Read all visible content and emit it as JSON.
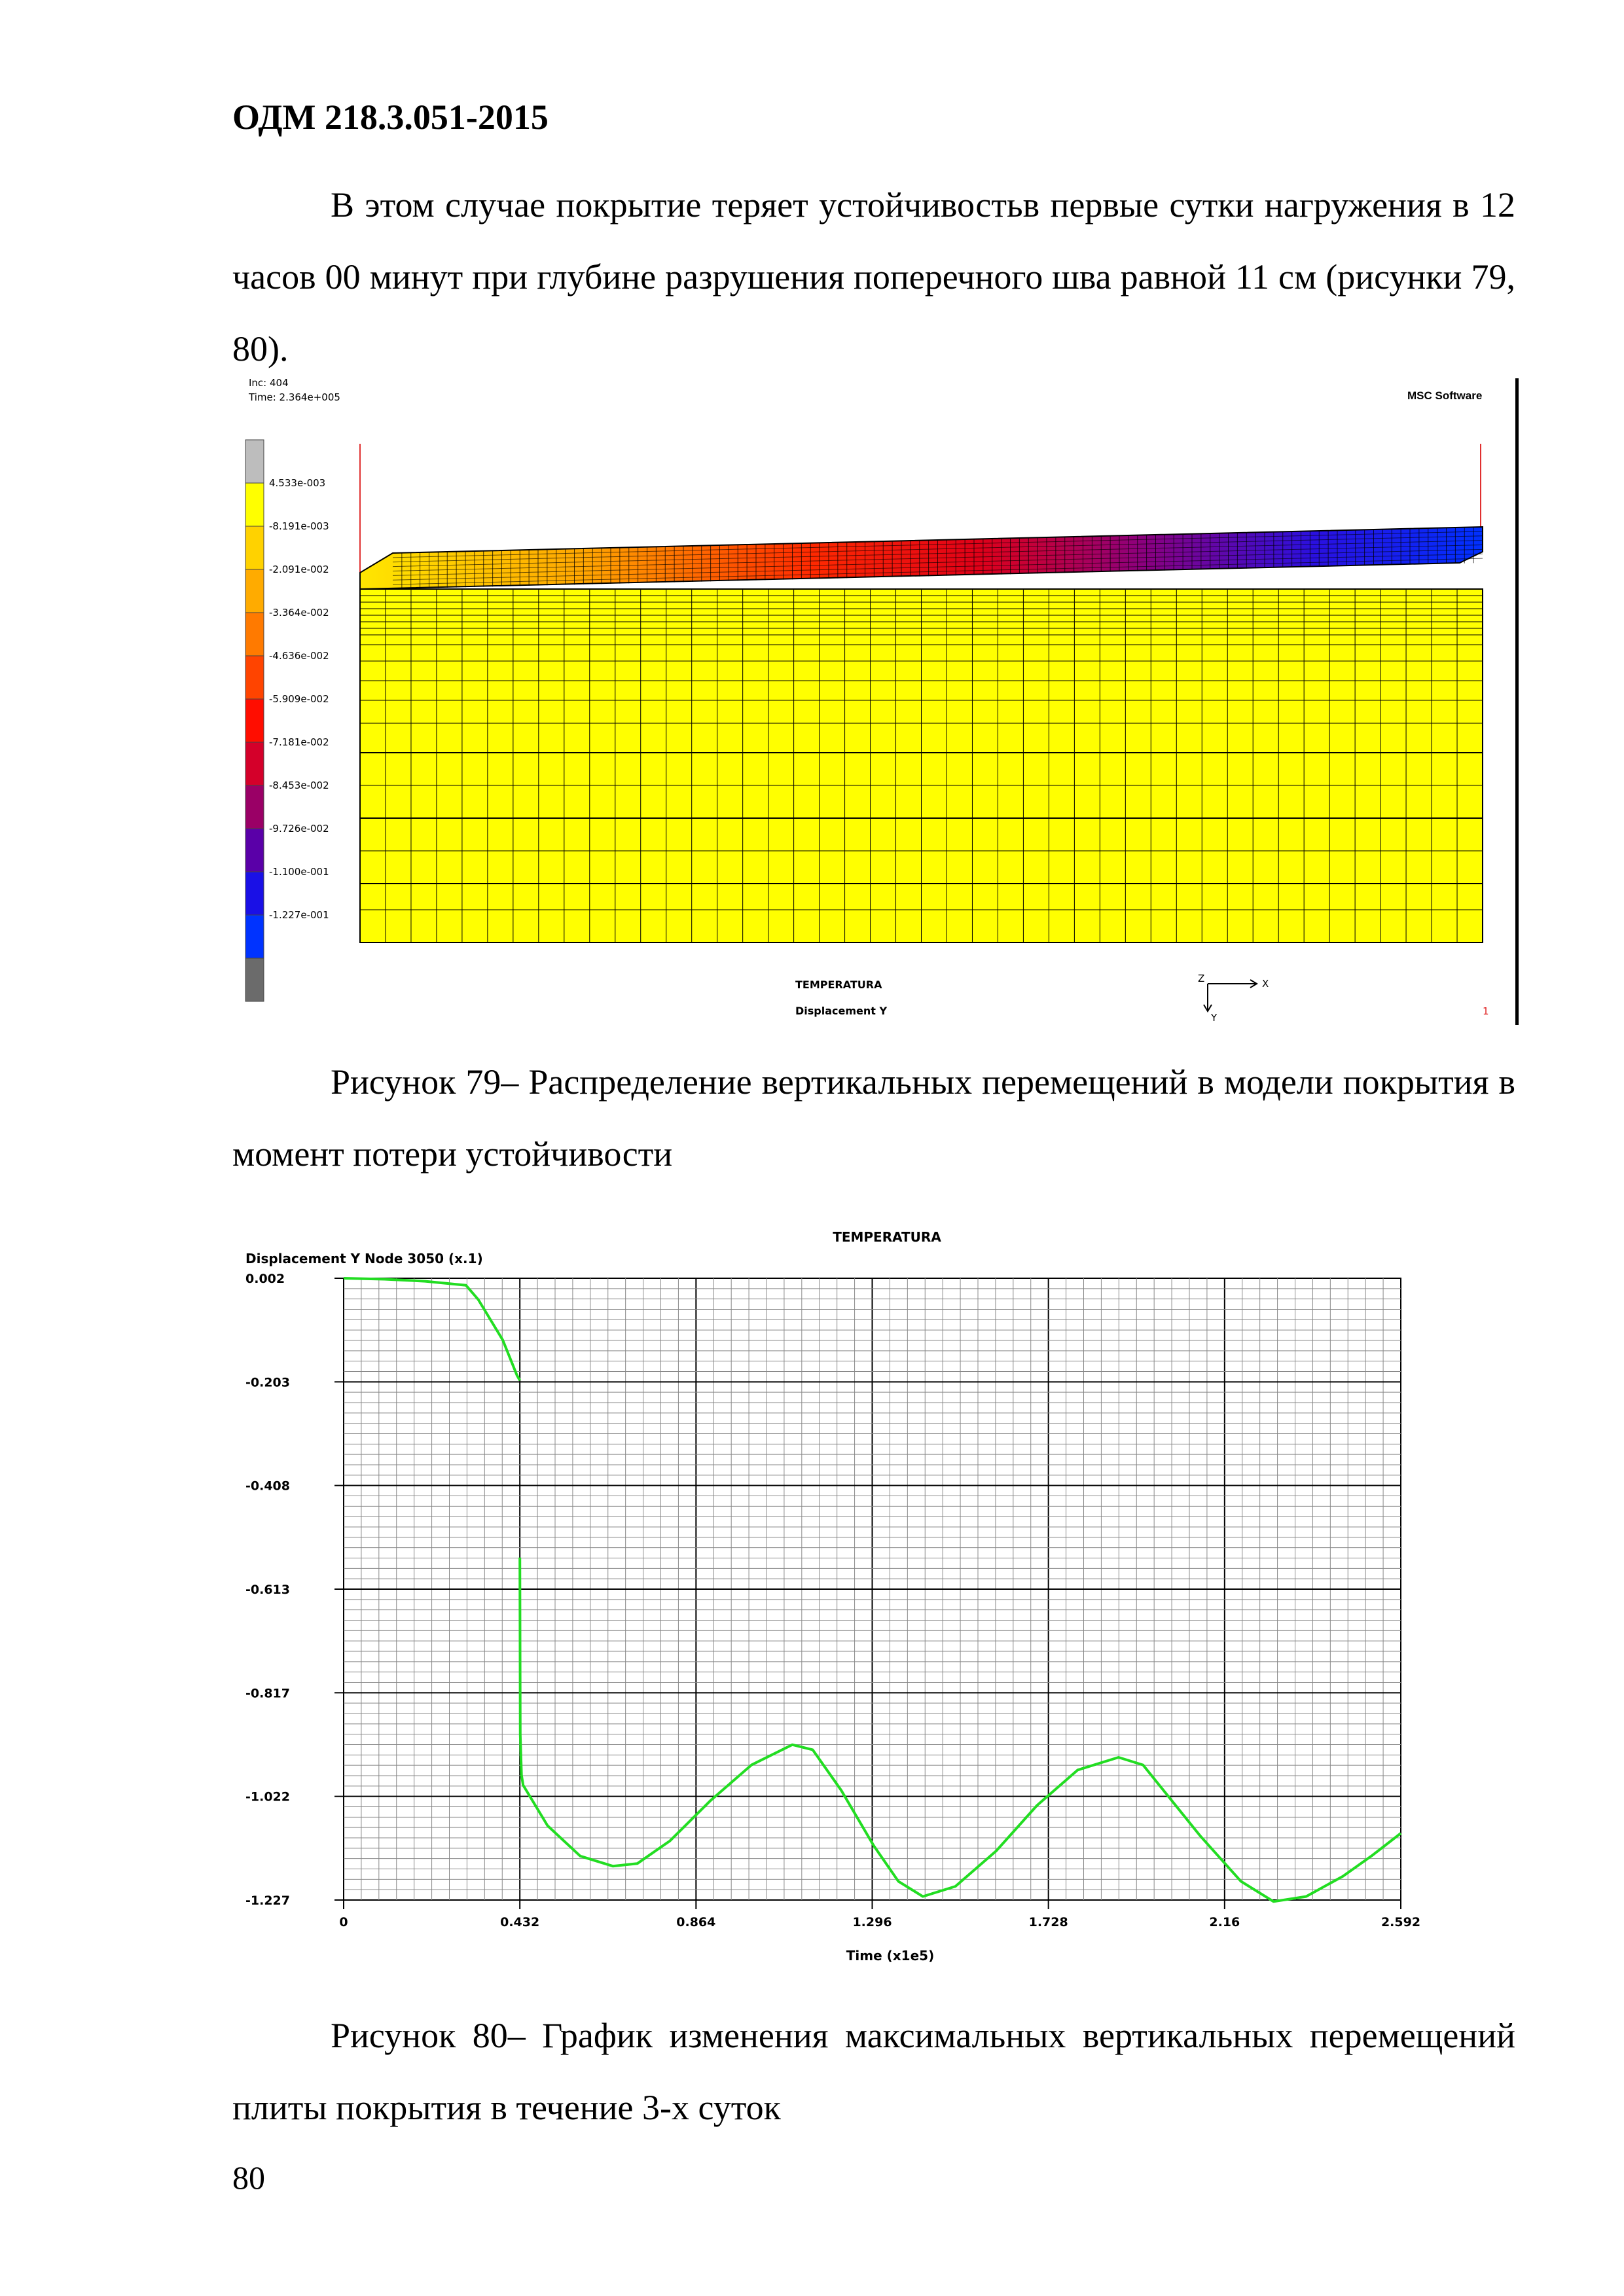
{
  "header": {
    "doc_code": "ОДМ 218.3.051-2015"
  },
  "paragraph_1": "В этом случае покрытие теряет устойчивостьв первые сутки нагружения в 12 часов 00 минут при глубине разрушения поперечного шва равной 11 см (рисунки 79, 80).",
  "figure_79": {
    "inc_label": "Inc:  404",
    "time_label": "Time:  2.364e+005",
    "logo": "MSC Software",
    "legend_values": [
      "4.533e-003",
      "-8.191e-003",
      "-2.091e-002",
      "-3.364e-002",
      "-4.636e-002",
      "-5.909e-002",
      "-7.181e-002",
      "-8.453e-002",
      "-9.726e-002",
      "-1.100e-001",
      "-1.227e-001"
    ],
    "legend_colors": [
      "#bdbdbd",
      "#ffff00",
      "#ffd200",
      "#ffab00",
      "#ff7a00",
      "#ff4400",
      "#ff0d00",
      "#d4002a",
      "#9a0066",
      "#5a00a8",
      "#1a10e6",
      "#0033ff",
      "#6b6b6b"
    ],
    "model_title": "TEMPERATURA",
    "result_label": "Displacement Y",
    "axis_x": "X",
    "axis_y": "Y",
    "axis_z": "Z",
    "index": "1",
    "caption": "Рисунок 79– Распределение вертикальных перемещений в модели покрытия в момент потери устойчивости"
  },
  "figure_80": {
    "caption": "Рисунок 80– График изменения максимальных вертикальных перемещений плиты покрытия в течение 3-х суток"
  },
  "chart_data": {
    "type": "line",
    "title": "TEMPERATURA",
    "ylabel": "Displacement Y Node 3050 (x.1)",
    "xlabel": "Time (x1e5)",
    "x_ticks": [
      "0",
      "0.432",
      "0.864",
      "1.296",
      "1.728",
      "2.16",
      "2.592"
    ],
    "y_ticks": [
      "0.002",
      "-0.203",
      "-0.408",
      "-0.613",
      "-0.817",
      "-1.022",
      "-1.227"
    ],
    "xlim": [
      0,
      2.592
    ],
    "ylim": [
      -1.227,
      0.002
    ],
    "grid": true,
    "line_color": "#22dd22",
    "series": [
      {
        "x": [
          0,
          0.1,
          0.2,
          0.3,
          0.33,
          0.36,
          0.39,
          0.41,
          0.425,
          0.432
        ],
        "y": [
          0.002,
          0.0,
          -0.004,
          -0.012,
          -0.04,
          -0.08,
          -0.12,
          -0.16,
          -0.19,
          -0.2
        ]
      },
      {
        "x": [
          0.432,
          0.433,
          0.436,
          0.44,
          0.5,
          0.58,
          0.66,
          0.72,
          0.8,
          0.9,
          1.0,
          1.1,
          1.15,
          1.22,
          1.3,
          1.36,
          1.42,
          1.5,
          1.6,
          1.7,
          1.8,
          1.9,
          1.96,
          2.02,
          2.1,
          2.2,
          2.28,
          2.36,
          2.45,
          2.52,
          2.592
        ],
        "y": [
          -0.55,
          -0.9,
          -0.98,
          -1.0,
          -1.08,
          -1.14,
          -1.16,
          -1.155,
          -1.11,
          -1.03,
          -0.96,
          -0.92,
          -0.93,
          -1.01,
          -1.12,
          -1.19,
          -1.22,
          -1.2,
          -1.13,
          -1.04,
          -0.97,
          -0.945,
          -0.96,
          -1.02,
          -1.1,
          -1.19,
          -1.23,
          -1.22,
          -1.18,
          -1.14,
          -1.095
        ]
      }
    ]
  }
}
